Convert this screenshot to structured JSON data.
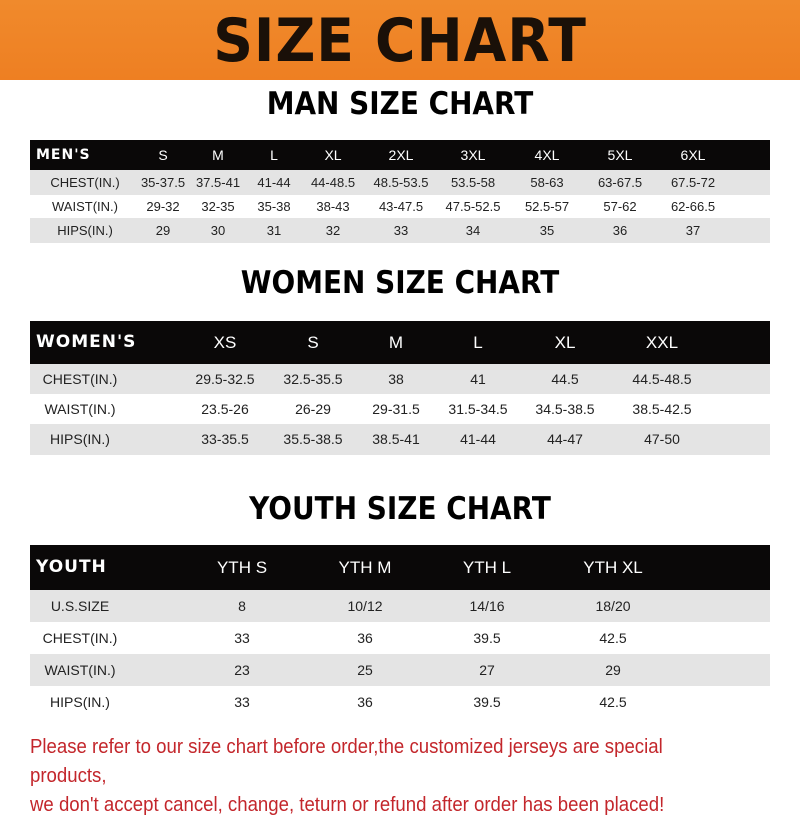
{
  "banner": {
    "title": "SIZE CHART",
    "color": "#f08a2c"
  },
  "men": {
    "title": "MAN SIZE CHART",
    "headers": [
      "MEN'S",
      "S",
      "M",
      "L",
      "XL",
      "2XL",
      "3XL",
      "4XL",
      "5XL",
      "6XL"
    ],
    "rows": [
      [
        "CHEST(IN.)",
        "35-37.5",
        "37.5-41",
        "41-44",
        "44-48.5",
        "48.5-53.5",
        "53.5-58",
        "58-63",
        "63-67.5",
        "67.5-72"
      ],
      [
        "WAIST(IN.)",
        "29-32",
        "32-35",
        "35-38",
        "38-43",
        "43-47.5",
        "47.5-52.5",
        "52.5-57",
        "57-62",
        "62-66.5"
      ],
      [
        "HIPS(IN.)",
        "29",
        "30",
        "31",
        "32",
        "33",
        "34",
        "35",
        "36",
        "37"
      ]
    ]
  },
  "women": {
    "title": "WOMEN SIZE CHART",
    "headers": [
      "WOMEN'S",
      "XS",
      "S",
      "M",
      "L",
      "XL",
      "XXL"
    ],
    "rows": [
      [
        "CHEST(IN.)",
        "29.5-32.5",
        "32.5-35.5",
        "38",
        "41",
        "44.5",
        "44.5-48.5"
      ],
      [
        "WAIST(IN.)",
        "23.5-26",
        "26-29",
        "29-31.5",
        "31.5-34.5",
        "34.5-38.5",
        "38.5-42.5"
      ],
      [
        "HIPS(IN.)",
        "33-35.5",
        "35.5-38.5",
        "38.5-41",
        "41-44",
        "44-47",
        "47-50"
      ]
    ]
  },
  "youth": {
    "title": "YOUTH SIZE CHART",
    "headers": [
      "YOUTH",
      "YTH S",
      "YTH M",
      "YTH L",
      "YTH XL"
    ],
    "rows": [
      [
        "U.S.SIZE",
        "8",
        "10/12",
        "14/16",
        "18/20"
      ],
      [
        "CHEST(IN.)",
        "33",
        "36",
        "39.5",
        "42.5"
      ],
      [
        "WAIST(IN.)",
        "23",
        "25",
        "27",
        "29"
      ],
      [
        "HIPS(IN.)",
        "33",
        "36",
        "39.5",
        "42.5"
      ]
    ]
  },
  "notice": {
    "line1": "Please refer to our size chart before order,the customized jerseys are special products,",
    "line2": "we don't accept cancel, change, teturn or refund after order has been placed!",
    "color": "#c3262b"
  }
}
